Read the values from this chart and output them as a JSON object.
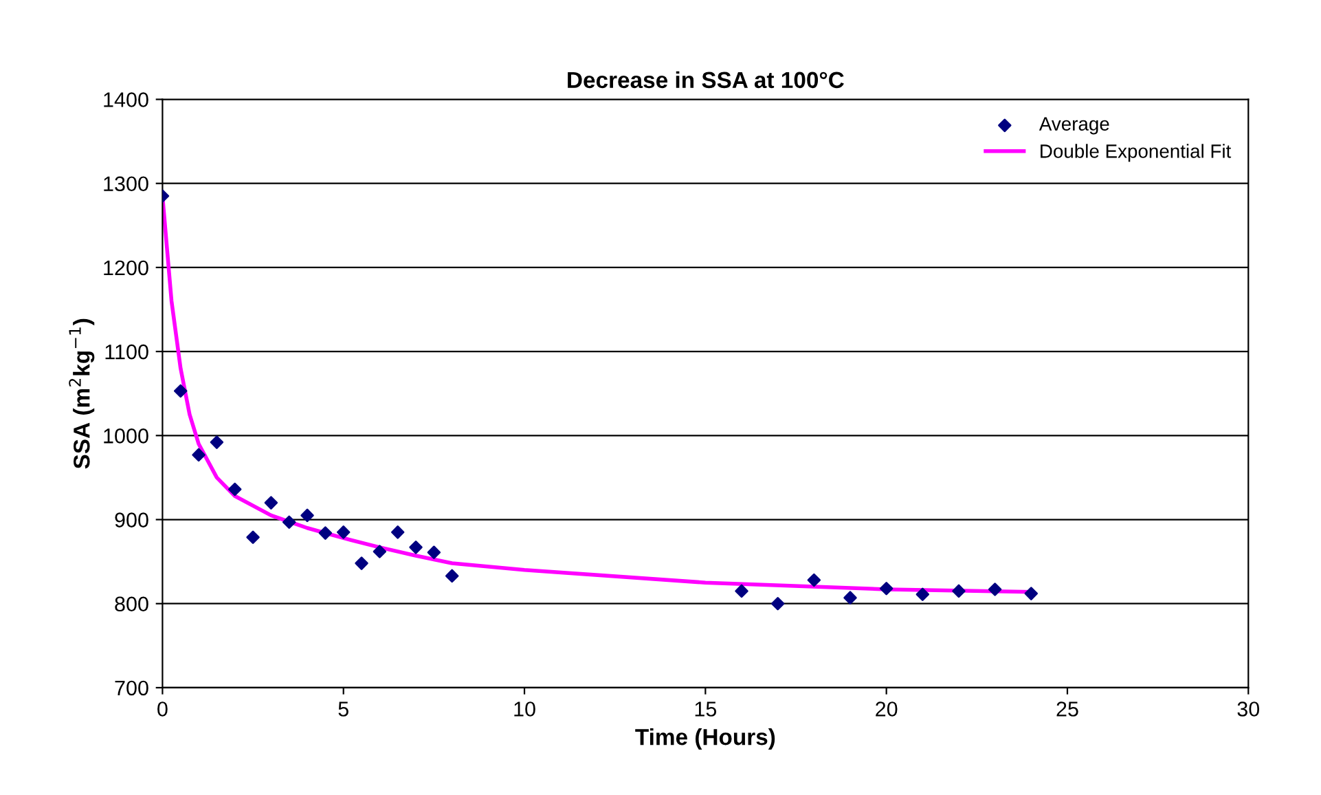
{
  "chart_data": {
    "type": "scatter",
    "title": "Decrease in SSA at 100°C",
    "xlabel": "Time (Hours)",
    "ylabel": "SSA (m$^{2}$kg$^{−1}$)",
    "xlim": [
      0,
      30
    ],
    "xticks": [
      0,
      5,
      10,
      15,
      20,
      25,
      30
    ],
    "ylim": [
      700,
      1400
    ],
    "yticks": [
      700,
      800,
      900,
      1000,
      1100,
      1200,
      1300,
      1400
    ],
    "grid": "y",
    "legend": "top right",
    "series": [
      {
        "name": "Average",
        "marker": "diamond",
        "color": "#000080",
        "x": [
          0,
          0.5,
          1,
          1.5,
          2,
          2.5,
          3,
          3.5,
          4,
          4.5,
          5,
          5.5,
          6,
          6.5,
          7,
          7.5,
          8,
          16,
          17,
          18,
          19,
          20,
          21,
          22,
          23,
          24
        ],
        "values": [
          1285,
          1053,
          977,
          992,
          936,
          879,
          920,
          897,
          905,
          884,
          885,
          848,
          862,
          885,
          867,
          861,
          833,
          815,
          800,
          828,
          807,
          818,
          811,
          815,
          817,
          812
        ]
      },
      {
        "name": "Double Exponential Fit",
        "type": "line",
        "marker": "none",
        "line_style": "solid",
        "color": "#ff00ff",
        "x": [
          0,
          0.25,
          0.5,
          0.75,
          1,
          1.5,
          2,
          3,
          4,
          5,
          6,
          7,
          8,
          10,
          15,
          20,
          24
        ],
        "values": [
          1285,
          1160,
          1080,
          1025,
          990,
          950,
          928,
          905,
          890,
          878,
          867,
          857,
          848,
          840,
          825,
          817,
          814
        ]
      }
    ]
  }
}
